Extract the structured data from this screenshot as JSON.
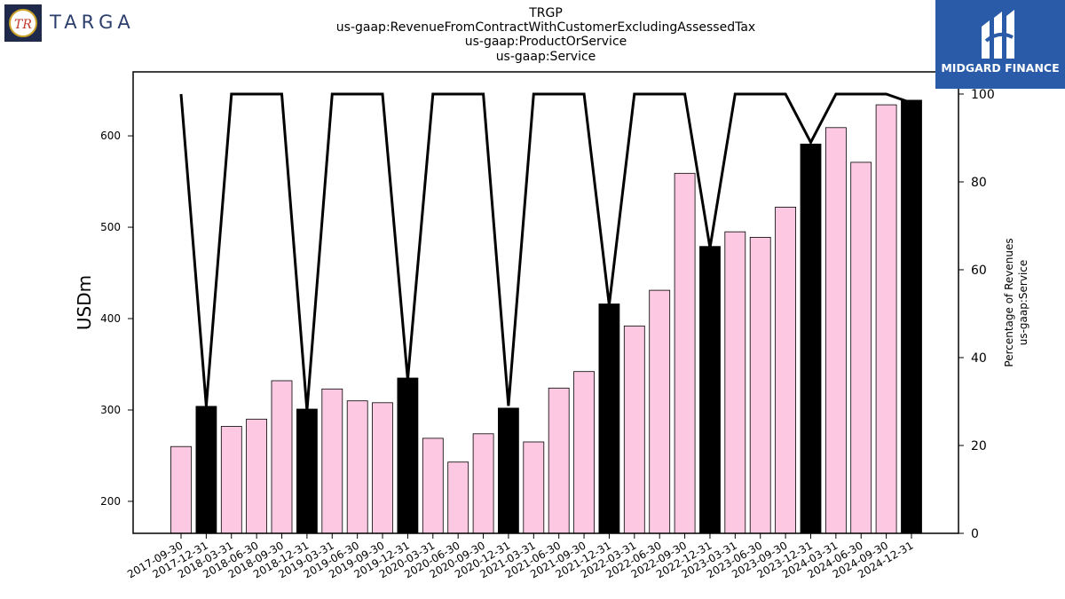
{
  "header": {
    "title_lines": [
      "TRGP",
      "us-gaap:RevenueFromContractWithCustomerExcludingAssessedTax",
      "us-gaap:ProductOrService",
      "us-gaap:Service"
    ],
    "left_logo_text": "TARGA",
    "left_logo_monogram": "TR",
    "right_logo_text": "MIDGARD FINANCE"
  },
  "chart_data": {
    "type": "bar",
    "ylabel": "USDm",
    "y2label_lines": [
      "Percentage of Revenues",
      "us-gaap:Service"
    ],
    "ylim": [
      165,
      670
    ],
    "y2lim": [
      0,
      100
    ],
    "yticks": [
      200,
      300,
      400,
      500,
      600
    ],
    "y2ticks": [
      0,
      20,
      40,
      60,
      80,
      100
    ],
    "colors": {
      "light": "#fdc8e2",
      "dark": "#000000",
      "line": "#000000"
    },
    "categories": [
      "2017-09-30",
      "2017-12-31",
      "2018-03-31",
      "2018-06-30",
      "2018-09-30",
      "2018-12-31",
      "2019-03-31",
      "2019-06-30",
      "2019-09-30",
      "2019-12-31",
      "2020-03-31",
      "2020-06-30",
      "2020-09-30",
      "2020-12-31",
      "2021-03-31",
      "2021-06-30",
      "2021-09-30",
      "2021-12-31",
      "2022-03-31",
      "2022-06-30",
      "2022-09-30",
      "2022-12-31",
      "2023-03-31",
      "2023-06-30",
      "2023-09-30",
      "2023-12-31",
      "2024-03-31",
      "2024-06-30",
      "2024-09-30",
      "2024-12-31"
    ],
    "values": [
      260,
      304,
      282,
      290,
      332,
      301,
      323,
      310,
      308,
      335,
      269,
      243,
      274,
      302,
      265,
      324,
      342,
      416,
      392,
      431,
      559,
      479,
      495,
      489,
      522,
      591,
      609,
      571,
      634,
      639
    ],
    "bar_style": [
      "light",
      "dark",
      "light",
      "light",
      "light",
      "dark",
      "light",
      "light",
      "light",
      "dark",
      "light",
      "light",
      "light",
      "dark",
      "light",
      "light",
      "light",
      "dark",
      "light",
      "light",
      "light",
      "dark",
      "light",
      "light",
      "light",
      "dark",
      "light",
      "light",
      "light",
      "dark"
    ],
    "percentages": [
      100,
      29,
      100,
      100,
      100,
      28,
      100,
      100,
      100,
      35,
      100,
      100,
      100,
      29,
      100,
      100,
      100,
      52,
      100,
      100,
      100,
      65,
      100,
      100,
      100,
      89,
      100,
      100,
      100,
      98
    ]
  }
}
